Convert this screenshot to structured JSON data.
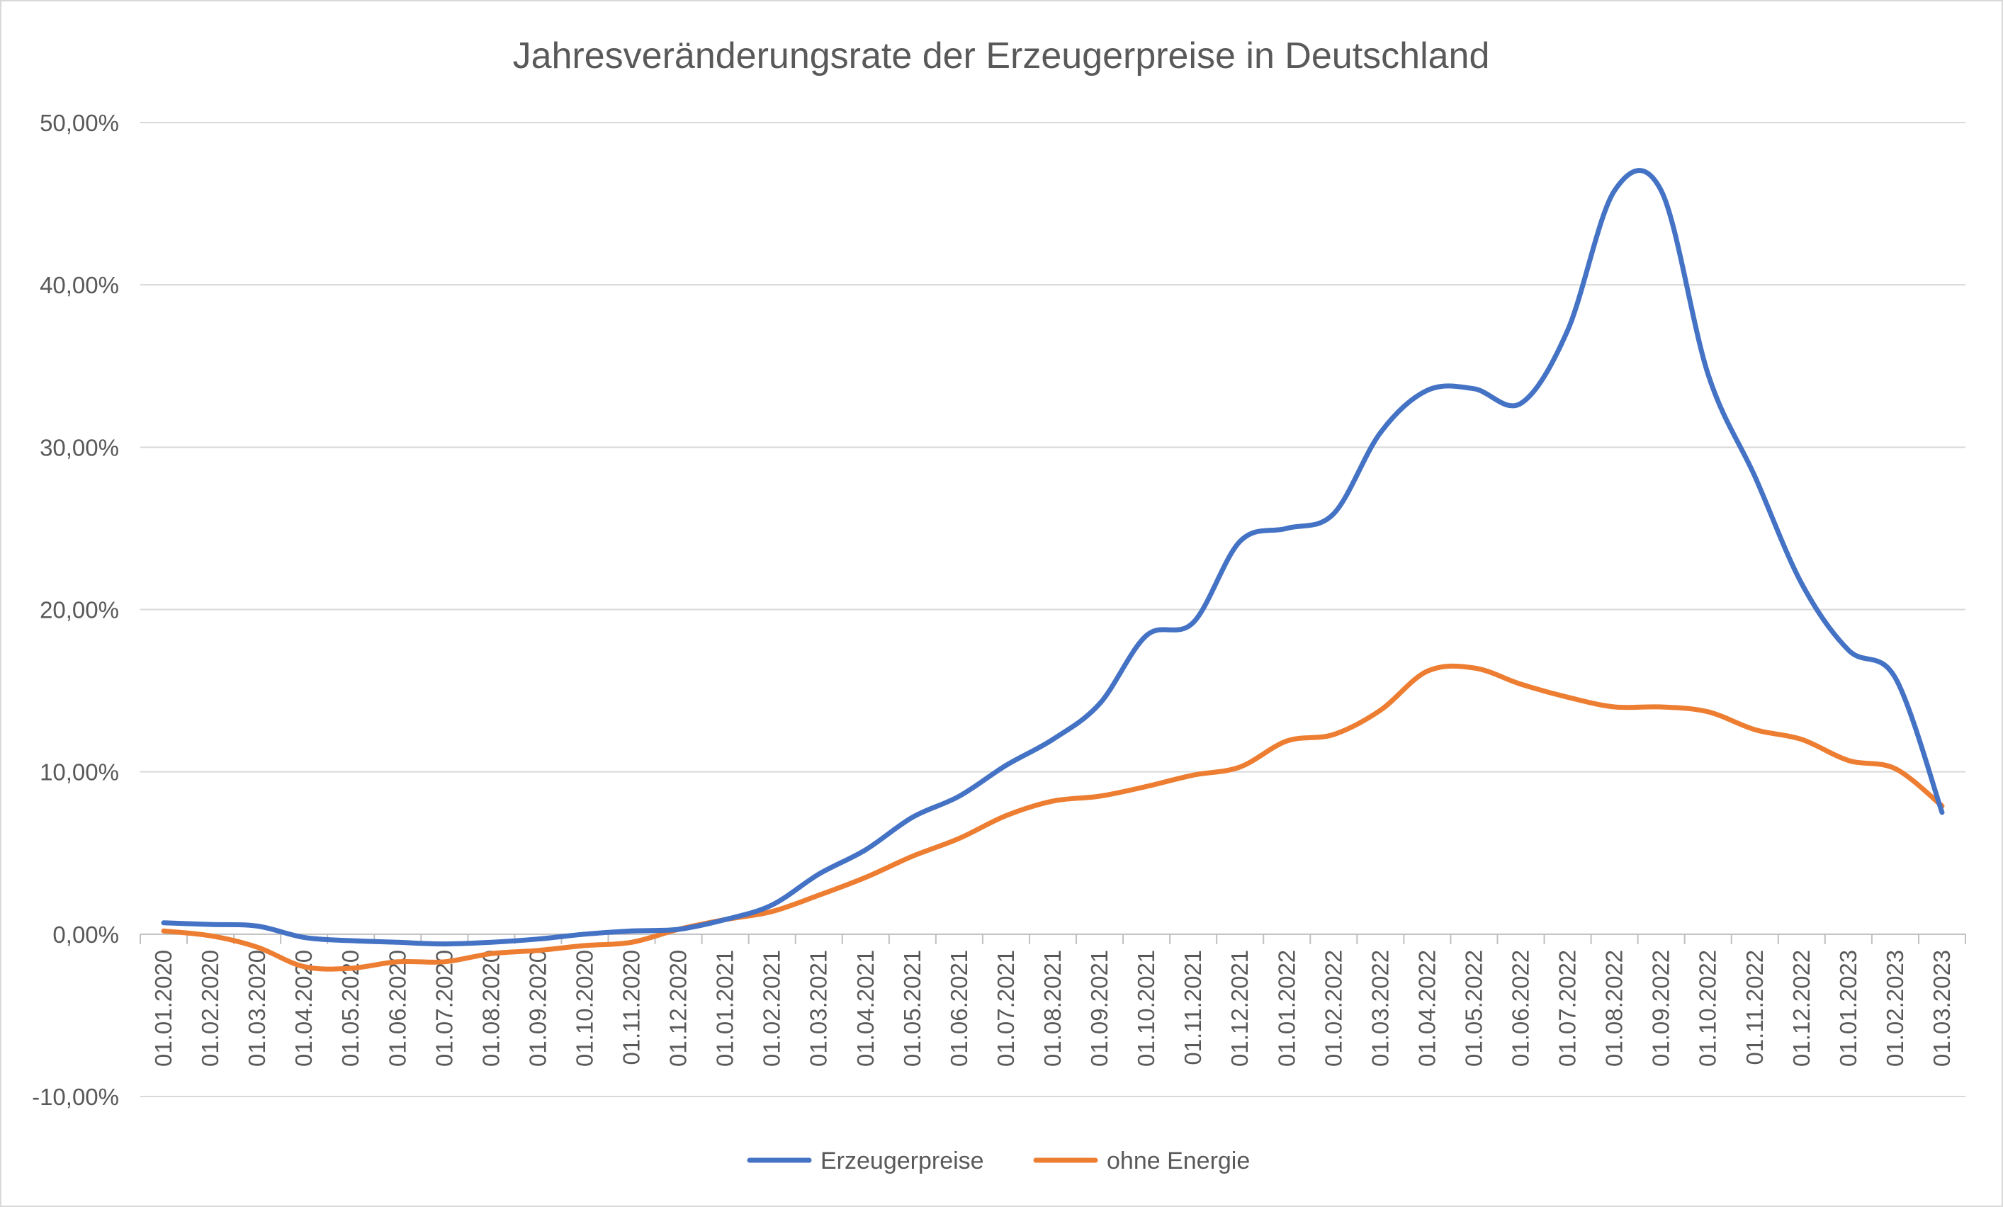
{
  "chart_data": {
    "type": "line",
    "title": "Jahresveränderungsrate der Erzeugerpreise in Deutschland",
    "x": [
      "01.01.2020",
      "01.02.2020",
      "01.03.2020",
      "01.04.2020",
      "01.05.2020",
      "01.06.2020",
      "01.07.2020",
      "01.08.2020",
      "01.09.2020",
      "01.10.2020",
      "01.11.2020",
      "01.12.2020",
      "01.01.2021",
      "01.02.2021",
      "01.03.2021",
      "01.04.2021",
      "01.05.2021",
      "01.06.2021",
      "01.07.2021",
      "01.08.2021",
      "01.09.2021",
      "01.10.2021",
      "01.11.2021",
      "01.12.2021",
      "01.01.2022",
      "01.02.2022",
      "01.03.2022",
      "01.04.2022",
      "01.05.2022",
      "01.06.2022",
      "01.07.2022",
      "01.08.2022",
      "01.09.2022",
      "01.10.2022",
      "01.11.2022",
      "01.12.2022",
      "01.01.2023",
      "01.02.2023",
      "01.03.2023"
    ],
    "series": [
      {
        "name": "Erzeugerpreise",
        "color": "#4472c4",
        "values": [
          0.7,
          0.6,
          0.5,
          -0.2,
          -0.4,
          -0.5,
          -0.6,
          -0.5,
          -0.3,
          0.0,
          0.2,
          0.3,
          0.9,
          1.8,
          3.7,
          5.2,
          7.2,
          8.5,
          10.4,
          12.0,
          14.2,
          18.4,
          19.2,
          24.2,
          25.0,
          25.9,
          30.9,
          33.5,
          33.6,
          32.7,
          37.2,
          45.8,
          45.8,
          34.5,
          28.2,
          21.6,
          17.5,
          15.8,
          7.5
        ]
      },
      {
        "name": "ohne Energie",
        "color": "#ed7d31",
        "values": [
          0.2,
          -0.1,
          -0.8,
          -2.0,
          -2.1,
          -1.7,
          -1.7,
          -1.2,
          -1.0,
          -0.7,
          -0.5,
          0.3,
          0.9,
          1.4,
          2.4,
          3.5,
          4.8,
          5.9,
          7.3,
          8.2,
          8.5,
          9.1,
          9.8,
          10.3,
          11.9,
          12.3,
          13.8,
          16.2,
          16.4,
          15.4,
          14.6,
          14.0,
          14.0,
          13.7,
          12.6,
          12.0,
          10.7,
          10.2,
          7.9
        ]
      }
    ],
    "ylim": [
      -10,
      50
    ],
    "yticks": [
      -10,
      0,
      10,
      20,
      30,
      40,
      50
    ],
    "ytick_labels": [
      "-10,00%",
      "0,00%",
      "10,00%",
      "20,00%",
      "30,00%",
      "40,00%",
      "50,00%"
    ],
    "grid": true,
    "legend_position": "bottom-center"
  }
}
